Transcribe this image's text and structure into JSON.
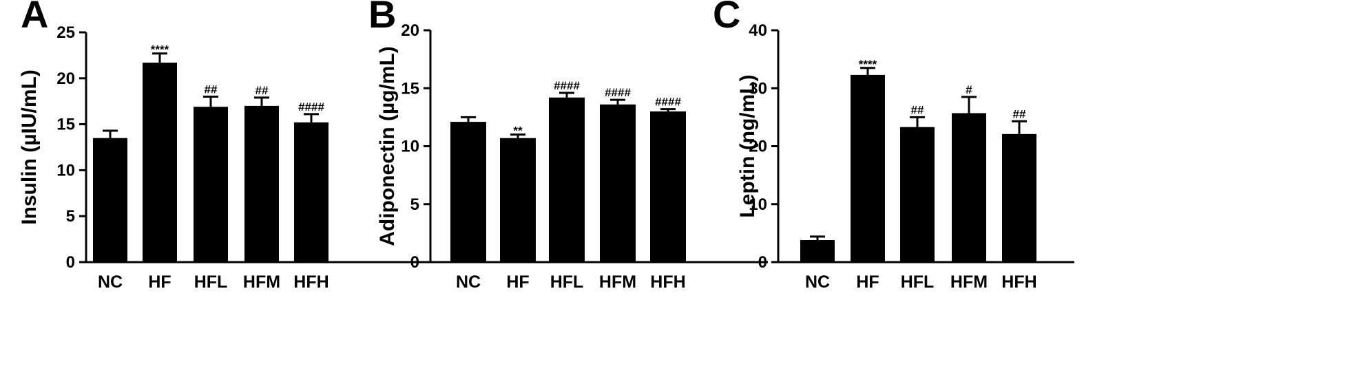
{
  "chart_data": [
    {
      "type": "bar",
      "panel_label": "A",
      "ylabel": "Insulin (µIU/mL)",
      "xlabel": "",
      "ylim": [
        0,
        25
      ],
      "yticks": [
        0,
        5,
        10,
        15,
        20,
        25
      ],
      "categories": [
        "NC",
        "HF",
        "HFL",
        "HFM",
        "HFH"
      ],
      "values": [
        13.5,
        21.7,
        16.9,
        17.0,
        15.2
      ],
      "errors": [
        0.8,
        1.0,
        1.1,
        0.9,
        0.9
      ],
      "annotations": [
        "",
        "****",
        "##",
        "##",
        "####"
      ]
    },
    {
      "type": "bar",
      "panel_label": "B",
      "ylabel": "Adiponectin (µg/mL)",
      "xlabel": "",
      "ylim": [
        0,
        20
      ],
      "yticks": [
        0,
        5,
        10,
        15,
        20
      ],
      "categories": [
        "NC",
        "HF",
        "HFL",
        "HFM",
        "HFH"
      ],
      "values": [
        12.1,
        10.7,
        14.2,
        13.6,
        13.0
      ],
      "errors": [
        0.4,
        0.3,
        0.4,
        0.4,
        0.2
      ],
      "annotations": [
        "",
        "**",
        "####",
        "####",
        "####"
      ]
    },
    {
      "type": "bar",
      "panel_label": "C",
      "ylabel": "Leptin (ng/mL)",
      "xlabel": "",
      "ylim": [
        0,
        40
      ],
      "yticks": [
        0,
        10,
        20,
        30,
        40
      ],
      "categories": [
        "NC",
        "HF",
        "HFL",
        "HFM",
        "HFH"
      ],
      "values": [
        3.8,
        32.3,
        23.3,
        25.7,
        22.1
      ],
      "errors": [
        0.6,
        1.2,
        1.7,
        2.8,
        2.2
      ],
      "annotations": [
        "",
        "****",
        "##",
        "#",
        "##"
      ]
    }
  ]
}
